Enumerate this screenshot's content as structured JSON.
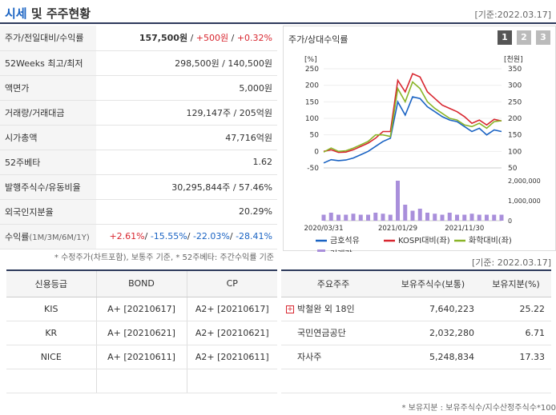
{
  "header": {
    "title_a": "시세",
    "title_b": "및 주주현황",
    "date": "[기준:2022.03.17]"
  },
  "market": {
    "rows": [
      {
        "label": "주가/전일대비/수익률",
        "price": "157,500원",
        "sep1": " / ",
        "change": "+500원",
        "sep2": " / ",
        "pct": "+0.32%"
      },
      {
        "label": "52Weeks 최고/최저",
        "value": "298,500원 / 140,500원"
      },
      {
        "label": "액면가",
        "value": "5,000원"
      },
      {
        "label": "거래량/거래대금",
        "value": "129,147주 / 205억원"
      },
      {
        "label": "시가총액",
        "value": "47,716억원"
      },
      {
        "label": "52주베타",
        "value": "1.62"
      },
      {
        "label": "발행주식수/유동비율",
        "value": "30,295,844주 / 57.46%"
      },
      {
        "label": "외국인지분율",
        "value": "20.29%"
      },
      {
        "label": "수익률",
        "label_sub": "(1M/3M/6M/1Y)",
        "r1": "+2.61%",
        "r2": "-15.55%",
        "r3": "-22.03%",
        "r4": "-28.41%"
      }
    ],
    "note": "* 수정주가(차트포함), 보통주 기준, * 52주베타: 주간수익률 기준"
  },
  "chart_panel": {
    "title": "주가/상대수익률",
    "buttons": [
      "1",
      "2",
      "3"
    ]
  },
  "chart_data": {
    "type": "line",
    "left_axis_unit": "[%]",
    "right_axis_unit": "[천원]",
    "left_ticks": [
      "250",
      "200",
      "150",
      "100",
      "50",
      "0",
      "-50"
    ],
    "right_ticks": [
      "350",
      "300",
      "250",
      "200",
      "150",
      "100",
      "50"
    ],
    "volume_ticks": [
      "2,000,000",
      "1,000,000",
      "0"
    ],
    "x_ticks": [
      "2020/03/31",
      "2021/01/29",
      "2021/11/30"
    ],
    "ylim_left": [
      -50,
      250
    ],
    "series": [
      {
        "name": "금호석유",
        "color": "#1a63c3",
        "values": [
          -35,
          -25,
          -28,
          -26,
          -20,
          -10,
          0,
          15,
          30,
          40,
          150,
          110,
          165,
          160,
          135,
          120,
          105,
          95,
          90,
          75,
          60,
          70,
          50,
          65,
          60
        ]
      },
      {
        "name": "KOSPI대비(좌)",
        "color": "#d8262f",
        "values": [
          0,
          5,
          -3,
          -2,
          5,
          15,
          25,
          40,
          60,
          60,
          215,
          180,
          235,
          225,
          180,
          160,
          140,
          130,
          120,
          105,
          85,
          95,
          80,
          97,
          92
        ]
      },
      {
        "name": "화학대비(좌)",
        "color": "#8ab428",
        "values": [
          -2,
          10,
          0,
          2,
          10,
          20,
          30,
          50,
          50,
          45,
          190,
          150,
          210,
          190,
          150,
          130,
          115,
          100,
          95,
          80,
          75,
          85,
          70,
          90,
          93
        ]
      }
    ],
    "volume_series_name": "거래량",
    "volume_color": "#a98fdb",
    "volume": [
      0.3,
      0.4,
      0.3,
      0.3,
      0.35,
      0.3,
      0.3,
      0.4,
      0.35,
      0.3,
      2.1,
      0.8,
      0.5,
      0.6,
      0.4,
      0.35,
      0.3,
      0.4,
      0.3,
      0.3,
      0.35,
      0.3,
      0.3,
      0.3,
      0.3
    ]
  },
  "date2": "[기준: 2022.03.17]",
  "credit": {
    "headers": [
      "신용등급",
      "BOND",
      "CP"
    ],
    "rows": [
      [
        "KIS",
        "A+ [20210617]",
        "A2+ [20210617]"
      ],
      [
        "KR",
        "A+ [20210621]",
        "A2+ [20210621]"
      ],
      [
        "NICE",
        "A+ [20210611]",
        "A2+ [20210611]"
      ]
    ]
  },
  "shareholders": {
    "headers": [
      "주요주주",
      "보유주식수(보통)",
      "보유지분(%)"
    ],
    "rows": [
      {
        "name": "박철완 외 18인",
        "shares": "7,640,223",
        "pct": "25.22"
      },
      {
        "name": "국민연금공단",
        "shares": "2,032,280",
        "pct": "6.71"
      },
      {
        "name": "자사주",
        "shares": "5,248,834",
        "pct": "17.33"
      }
    ],
    "expand_icon": "plus-icon"
  },
  "note2": "* 보유지분 : 보유주식수/지수산정주식수*100"
}
